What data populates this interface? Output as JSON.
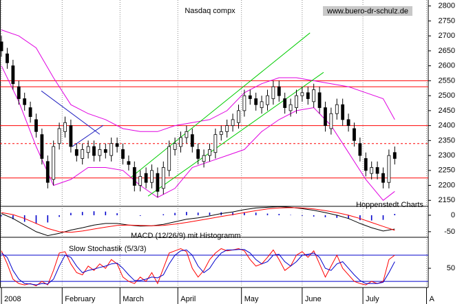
{
  "chart_data": [
    {
      "type": "candlestick",
      "title": "Nasdaq compx",
      "source": "www.buero-dr-schulz.de",
      "credit": "Hoppenstedt Charts",
      "xlim": [
        -0.5,
        147.6
      ],
      "ylim": [
        2130,
        2820
      ],
      "yticks": [
        2800,
        2750,
        2700,
        2650,
        2600,
        2550,
        2500,
        2450,
        2400,
        2350,
        2300,
        2250,
        2200,
        2150
      ],
      "x": [
        0,
        2,
        4,
        6,
        8,
        10,
        12,
        14,
        16,
        18,
        20,
        22,
        24,
        26,
        28,
        30,
        32,
        34,
        36,
        38,
        40,
        42,
        44,
        46,
        48,
        50,
        52,
        54,
        56,
        58,
        60,
        62,
        64,
        66,
        68,
        70,
        72,
        74,
        76,
        78,
        80,
        82,
        84,
        86,
        88,
        90,
        92,
        94,
        96,
        98,
        100,
        102,
        104,
        106,
        108,
        110,
        112,
        114,
        116,
        118,
        120,
        122,
        124,
        126,
        128,
        130,
        132,
        134,
        136
      ],
      "open": [
        2680,
        2640,
        2600,
        2530,
        2490,
        2460,
        2420,
        2370,
        2280,
        2220,
        2340,
        2380,
        2400,
        2320,
        2290,
        2310,
        2330,
        2300,
        2320,
        2300,
        2340,
        2320,
        2280,
        2260,
        2200,
        2240,
        2210,
        2240,
        2190,
        2250,
        2320,
        2330,
        2360,
        2370,
        2320,
        2280,
        2300,
        2310,
        2370,
        2380,
        2400,
        2410,
        2450,
        2500,
        2490,
        2460,
        2470,
        2490,
        2530,
        2490,
        2450,
        2460,
        2500,
        2510,
        2480,
        2510,
        2460,
        2390,
        2440,
        2470,
        2420,
        2390,
        2340,
        2290,
        2240,
        2260,
        2240,
        2210,
        2310
      ],
      "high": [
        2700,
        2660,
        2620,
        2550,
        2510,
        2480,
        2440,
        2390,
        2300,
        2350,
        2410,
        2430,
        2420,
        2340,
        2340,
        2350,
        2350,
        2340,
        2340,
        2360,
        2360,
        2340,
        2300,
        2280,
        2250,
        2260,
        2270,
        2260,
        2280,
        2350,
        2360,
        2380,
        2400,
        2390,
        2340,
        2320,
        2340,
        2390,
        2400,
        2420,
        2440,
        2470,
        2520,
        2520,
        2510,
        2500,
        2520,
        2550,
        2550,
        2510,
        2490,
        2520,
        2530,
        2530,
        2540,
        2530,
        2480,
        2460,
        2490,
        2490,
        2440,
        2410,
        2360,
        2310,
        2280,
        2280,
        2260,
        2320,
        2330
      ],
      "low": [
        2630,
        2590,
        2520,
        2470,
        2450,
        2410,
        2360,
        2270,
        2190,
        2200,
        2320,
        2360,
        2310,
        2280,
        2270,
        2290,
        2280,
        2280,
        2290,
        2280,
        2310,
        2270,
        2250,
        2180,
        2180,
        2190,
        2190,
        2160,
        2170,
        2230,
        2300,
        2310,
        2340,
        2310,
        2270,
        2260,
        2280,
        2290,
        2350,
        2360,
        2380,
        2390,
        2430,
        2470,
        2450,
        2440,
        2450,
        2470,
        2480,
        2440,
        2430,
        2440,
        2480,
        2470,
        2460,
        2440,
        2380,
        2370,
        2420,
        2400,
        2380,
        2330,
        2280,
        2230,
        2220,
        2220,
        2190,
        2190,
        2270
      ],
      "close": [
        2650,
        2610,
        2540,
        2490,
        2470,
        2430,
        2380,
        2290,
        2210,
        2330,
        2390,
        2410,
        2330,
        2300,
        2320,
        2330,
        2300,
        2320,
        2310,
        2340,
        2330,
        2290,
        2270,
        2200,
        2230,
        2210,
        2250,
        2180,
        2260,
        2330,
        2340,
        2360,
        2380,
        2330,
        2290,
        2300,
        2320,
        2370,
        2380,
        2400,
        2420,
        2450,
        2500,
        2490,
        2470,
        2480,
        2500,
        2530,
        2500,
        2460,
        2470,
        2500,
        2510,
        2490,
        2520,
        2460,
        2400,
        2440,
        2470,
        2420,
        2400,
        2350,
        2300,
        2250,
        2260,
        2240,
        2210,
        2300,
        2290
      ],
      "bands": {
        "color": "#e000e0",
        "x": [
          0,
          6,
          12,
          18,
          24,
          30,
          36,
          42,
          48,
          54,
          60,
          66,
          72,
          78,
          84,
          90,
          96,
          102,
          108,
          114,
          120,
          126,
          132,
          136
        ],
        "upper": [
          2720,
          2700,
          2660,
          2560,
          2470,
          2440,
          2420,
          2390,
          2380,
          2380,
          2400,
          2410,
          2420,
          2450,
          2510,
          2540,
          2560,
          2560,
          2550,
          2540,
          2530,
          2510,
          2490,
          2420
        ],
        "lower": [
          2600,
          2480,
          2330,
          2200,
          2220,
          2260,
          2260,
          2250,
          2200,
          2160,
          2190,
          2260,
          2280,
          2300,
          2320,
          2380,
          2420,
          2450,
          2460,
          2400,
          2310,
          2220,
          2150,
          2180
        ]
      },
      "trendlines": [
        {
          "color": "#00cc00",
          "x": [
            44.8,
            106.7
          ],
          "values": [
            2227,
            2710
          ]
        },
        {
          "color": "#00cc00",
          "x": [
            50.7,
            111.4
          ],
          "values": [
            2164,
            2578
          ]
        },
        {
          "color": "#2020c0",
          "x": [
            13.8,
            34
          ],
          "values": [
            2516,
            2371
          ]
        },
        {
          "color": "#2020c0",
          "x": [
            24.5,
            35.2
          ],
          "values": [
            2330,
            2401
          ]
        }
      ],
      "hlines": [
        {
          "value": 2550,
          "color": "#ff0000",
          "dashed": false
        },
        {
          "value": 2530,
          "color": "#ff0000",
          "dashed": false
        },
        {
          "value": 2400,
          "color": "#ff0000",
          "dashed": false
        },
        {
          "value": 2340,
          "color": "#ff0000",
          "dashed": true
        },
        {
          "value": 2225,
          "color": "#ff0000",
          "dashed": false
        }
      ]
    },
    {
      "type": "macd",
      "title": "MACD (12/26/9) mit Histogramm",
      "xlim": [
        -0.5,
        147.6
      ],
      "ylim": [
        -67,
        27
      ],
      "yticks": [
        0,
        -50
      ],
      "x": [
        0,
        4,
        8,
        12,
        16,
        20,
        24,
        28,
        32,
        36,
        40,
        44,
        48,
        52,
        56,
        60,
        64,
        68,
        72,
        76,
        80,
        84,
        88,
        92,
        96,
        100,
        104,
        108,
        112,
        116,
        120,
        124,
        128,
        132,
        136
      ],
      "series": [
        {
          "color": "#000000",
          "values": [
            5,
            -10,
            -30,
            -50,
            -62,
            -55,
            -45,
            -38,
            -30,
            -25,
            -25,
            -30,
            -33,
            -32,
            -28,
            -20,
            -12,
            -8,
            -2,
            5,
            10,
            17,
            22,
            24,
            26,
            24,
            20,
            15,
            8,
            0,
            -10,
            -25,
            -38,
            -48,
            -42
          ]
        },
        {
          "color": "#ff0000",
          "values": [
            8,
            2,
            -10,
            -25,
            -40,
            -50,
            -52,
            -48,
            -42,
            -36,
            -31,
            -30,
            -31,
            -32,
            -31,
            -27,
            -22,
            -16,
            -10,
            -4,
            2,
            8,
            14,
            19,
            22,
            23,
            22,
            19,
            14,
            8,
            0,
            -10,
            -22,
            -34,
            -46
          ]
        }
      ],
      "histogram": {
        "color": "#0000cc",
        "values": [
          -3,
          -12,
          -20,
          -25,
          -22,
          -5,
          7,
          10,
          12,
          11,
          6,
          0,
          -2,
          0,
          3,
          7,
          10,
          8,
          8,
          9,
          8,
          9,
          8,
          5,
          4,
          1,
          -2,
          -4,
          -6,
          -8,
          -10,
          -15,
          -16,
          -14,
          4
        ]
      }
    },
    {
      "type": "stochastic",
      "title": "Slow Stochastik (5/3/3)",
      "xlim": [
        -0.5,
        147.6
      ],
      "ylim": [
        6,
        121
      ],
      "yticks": [
        50
      ],
      "xticks": [
        {
          "value": 0,
          "label": "2008"
        },
        {
          "value": 21,
          "label": "February"
        },
        {
          "value": 41,
          "label": "March"
        },
        {
          "value": 61,
          "label": "April"
        },
        {
          "value": 83,
          "label": "May"
        },
        {
          "value": 104,
          "label": "June"
        },
        {
          "value": 125,
          "label": "July"
        },
        {
          "value": 147,
          "label": "A"
        }
      ],
      "hlines": [
        {
          "value": 80,
          "color": "#0000cc",
          "dashed": false
        },
        {
          "value": 20,
          "color": "#0000cc",
          "dashed": false
        }
      ],
      "x": [
        0,
        2,
        4,
        6,
        8,
        10,
        12,
        14,
        16,
        18,
        20,
        22,
        24,
        26,
        28,
        30,
        32,
        34,
        36,
        38,
        40,
        42,
        44,
        46,
        48,
        50,
        52,
        54,
        56,
        58,
        60,
        62,
        64,
        66,
        68,
        70,
        72,
        74,
        76,
        78,
        80,
        82,
        84,
        86,
        88,
        90,
        92,
        94,
        96,
        98,
        100,
        102,
        104,
        106,
        108,
        110,
        112,
        114,
        116,
        118,
        120,
        122,
        124,
        126,
        128,
        130,
        132,
        134,
        136
      ],
      "series": [
        {
          "color": "#ff0000",
          "values": [
            90,
            60,
            25,
            15,
            12,
            15,
            10,
            20,
            12,
            45,
            85,
            88,
            60,
            40,
            35,
            55,
            45,
            60,
            50,
            70,
            60,
            30,
            20,
            15,
            30,
            20,
            40,
            15,
            50,
            85,
            90,
            95,
            88,
            50,
            30,
            45,
            70,
            85,
            95,
            90,
            92,
            95,
            90,
            70,
            55,
            60,
            75,
            92,
            70,
            45,
            55,
            80,
            88,
            75,
            90,
            60,
            30,
            55,
            80,
            50,
            35,
            20,
            15,
            12,
            20,
            15,
            20,
            70,
            80
          ]
        },
        {
          "color": "#0000cc",
          "values": [
            85,
            75,
            45,
            25,
            15,
            14,
            12,
            15,
            14,
            25,
            55,
            80,
            75,
            55,
            40,
            45,
            48,
            52,
            55,
            60,
            62,
            50,
            35,
            22,
            22,
            25,
            30,
            28,
            35,
            60,
            80,
            90,
            92,
            80,
            55,
            40,
            50,
            70,
            85,
            92,
            92,
            93,
            93,
            85,
            70,
            60,
            65,
            80,
            82,
            65,
            55,
            65,
            80,
            82,
            85,
            75,
            50,
            45,
            60,
            65,
            50,
            35,
            22,
            15,
            15,
            15,
            18,
            40,
            65
          ]
        }
      ]
    }
  ]
}
